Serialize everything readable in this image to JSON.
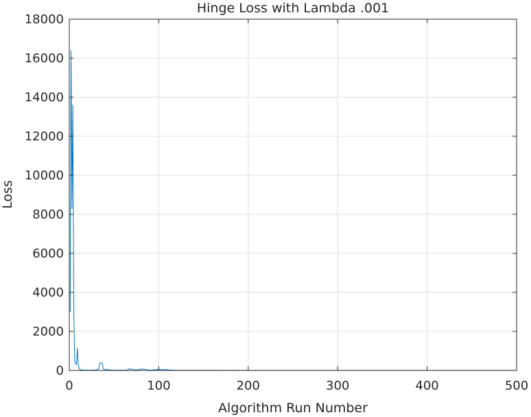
{
  "chart_data": {
    "type": "line",
    "title": "Hinge Loss with Lambda .001",
    "xlabel": "Algorithm Run Number",
    "ylabel": "Loss",
    "xlim": [
      0,
      500
    ],
    "ylim": [
      0,
      18000
    ],
    "xticks": [
      0,
      100,
      200,
      300,
      400,
      500
    ],
    "yticks": [
      0,
      2000,
      4000,
      6000,
      8000,
      10000,
      12000,
      14000,
      16000,
      18000
    ],
    "grid": true,
    "box": true,
    "line_color": "#0072bd",
    "series": [
      {
        "x": [
          1,
          2,
          3,
          4,
          5,
          6,
          7,
          8,
          9,
          10,
          11,
          12,
          13,
          15,
          20,
          25,
          30,
          33,
          34,
          35,
          36,
          37,
          38,
          39,
          40,
          42,
          45,
          50,
          60,
          65,
          66,
          70,
          75,
          78,
          80,
          84,
          88,
          90,
          95,
          100,
          105,
          108,
          110,
          115,
          120,
          150,
          200,
          250,
          300,
          350,
          400,
          450,
          500
        ],
        "y": [
          3000,
          16400,
          8300,
          13600,
          3200,
          500,
          350,
          300,
          1150,
          300,
          100,
          50,
          30,
          20,
          15,
          15,
          20,
          80,
          380,
          400,
          380,
          350,
          100,
          50,
          30,
          60,
          20,
          15,
          15,
          20,
          80,
          60,
          20,
          40,
          70,
          60,
          20,
          15,
          30,
          50,
          30,
          60,
          30,
          15,
          10,
          8,
          5,
          5,
          5,
          5,
          5,
          5,
          5
        ]
      }
    ]
  }
}
